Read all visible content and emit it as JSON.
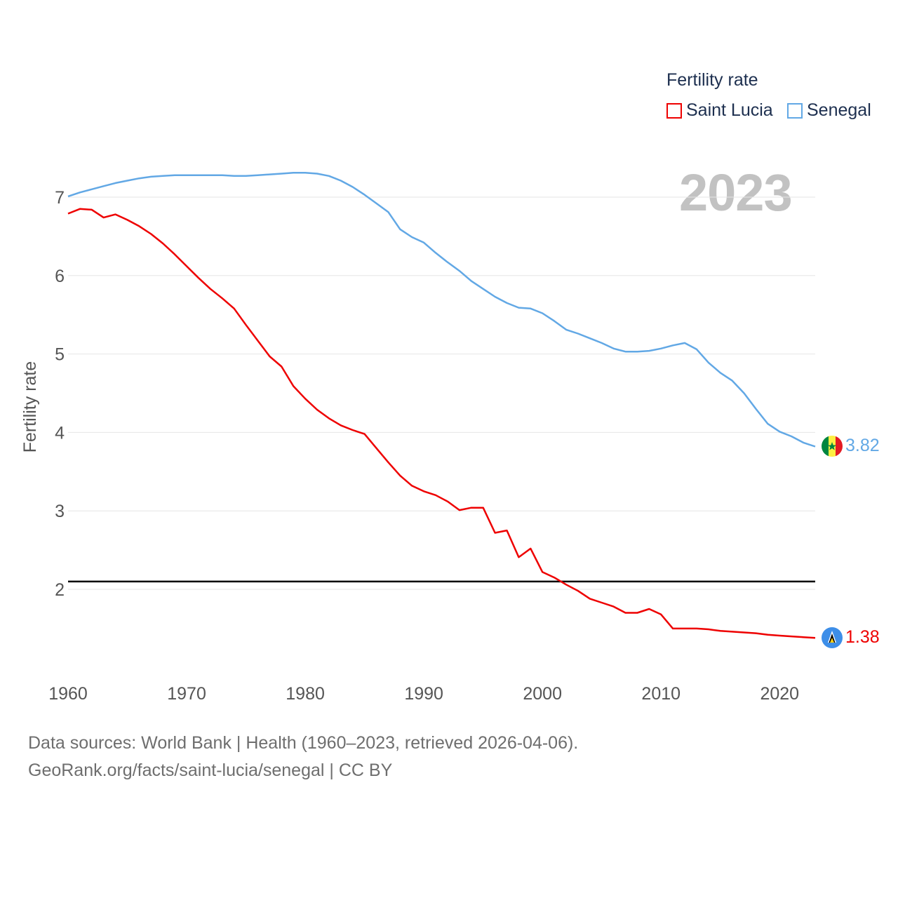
{
  "legend": {
    "title": "Fertility rate",
    "items": [
      {
        "label": "Saint Lucia",
        "color": "#ee0000"
      },
      {
        "label": "Senegal",
        "color": "#62a8e5"
      }
    ]
  },
  "year_stamp": "2023",
  "end_labels": {
    "senegal": "3.82",
    "saint_lucia": "1.38"
  },
  "source": {
    "line1": "Data sources: World Bank | Health (1960–2023, retrieved 2026-04-06).",
    "line2": "GeoRank.org/facts/saint-lucia/senegal | CC BY"
  },
  "chart_data": {
    "type": "line",
    "title": "",
    "xlabel": "",
    "ylabel": "Fertility rate",
    "xlim": [
      1960,
      2023
    ],
    "ylim": [
      1,
      7.5
    ],
    "x_ticks": [
      "1960",
      "1970",
      "1980",
      "1990",
      "2000",
      "2010",
      "2020"
    ],
    "y_ticks": [
      "2",
      "3",
      "4",
      "5",
      "6",
      "7"
    ],
    "grid": true,
    "reference_line": {
      "value": 2.1,
      "color": "#000000"
    },
    "x": [
      1960,
      1961,
      1962,
      1963,
      1964,
      1965,
      1966,
      1967,
      1968,
      1969,
      1970,
      1971,
      1972,
      1973,
      1974,
      1975,
      1976,
      1977,
      1978,
      1979,
      1980,
      1981,
      1982,
      1983,
      1984,
      1985,
      1986,
      1987,
      1988,
      1989,
      1990,
      1991,
      1992,
      1993,
      1994,
      1995,
      1996,
      1997,
      1998,
      1999,
      2000,
      2001,
      2002,
      2003,
      2004,
      2005,
      2006,
      2007,
      2008,
      2009,
      2010,
      2011,
      2012,
      2013,
      2014,
      2015,
      2016,
      2017,
      2018,
      2019,
      2020,
      2021,
      2022,
      2023
    ],
    "series": [
      {
        "name": "Saint Lucia",
        "color": "#ee0000",
        "values": [
          6.79,
          6.85,
          6.84,
          6.74,
          6.78,
          6.71,
          6.63,
          6.53,
          6.41,
          6.27,
          6.12,
          5.97,
          5.83,
          5.71,
          5.58,
          5.37,
          5.17,
          4.97,
          4.84,
          4.59,
          4.43,
          4.29,
          4.18,
          4.09,
          4.03,
          3.98,
          3.8,
          3.62,
          3.45,
          3.32,
          3.25,
          3.2,
          3.12,
          3.01,
          3.04,
          3.04,
          2.72,
          2.75,
          2.41,
          2.52,
          2.22,
          2.15,
          2.06,
          1.98,
          1.88,
          1.83,
          1.78,
          1.7,
          1.7,
          1.75,
          1.68,
          1.5,
          1.5,
          1.5,
          1.49,
          1.47,
          1.46,
          1.45,
          1.44,
          1.42,
          1.41,
          1.4,
          1.39,
          1.38
        ]
      },
      {
        "name": "Senegal",
        "color": "#62a8e5",
        "values": [
          7.01,
          7.06,
          7.1,
          7.14,
          7.18,
          7.21,
          7.24,
          7.26,
          7.27,
          7.28,
          7.28,
          7.28,
          7.28,
          7.28,
          7.27,
          7.27,
          7.28,
          7.29,
          7.3,
          7.31,
          7.31,
          7.3,
          7.27,
          7.21,
          7.13,
          7.03,
          6.92,
          6.81,
          6.59,
          6.49,
          6.42,
          6.29,
          6.17,
          6.06,
          5.93,
          5.83,
          5.73,
          5.65,
          5.59,
          5.58,
          5.52,
          5.42,
          5.31,
          5.26,
          5.2,
          5.14,
          5.07,
          5.03,
          5.03,
          5.04,
          5.07,
          5.11,
          5.14,
          5.06,
          4.89,
          4.76,
          4.66,
          4.5,
          4.3,
          4.11,
          4.01,
          3.95,
          3.87,
          3.82
        ]
      }
    ]
  }
}
